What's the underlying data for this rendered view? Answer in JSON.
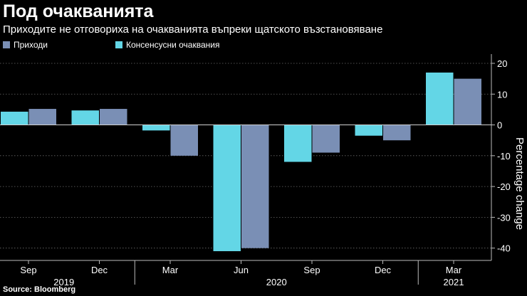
{
  "header": {
    "title": "Под очакванията",
    "subtitle": "Приходите не отговориха на очакванията въпреки щатското възстановяване"
  },
  "legend": {
    "items": [
      {
        "label": "Приходи",
        "color": "#7a8fb5"
      },
      {
        "label": "Консенсусни очаквания",
        "color": "#63d6e6"
      }
    ]
  },
  "footer": {
    "source": "Source:  Bloomberg"
  },
  "chart_data": {
    "type": "bar",
    "categories": [
      "Sep",
      "Dec",
      "Mar",
      "Jun",
      "Sep",
      "Dec",
      "Mar"
    ],
    "year_labels": [
      {
        "label": "2019",
        "span": [
          0,
          1
        ]
      },
      {
        "label": "2020",
        "span": [
          2,
          5
        ]
      },
      {
        "label": "2021",
        "span": [
          6,
          6
        ]
      }
    ],
    "series": [
      {
        "name": "Консенсусни очаквания",
        "color": "#63d6e6",
        "values": [
          4.3,
          4.7,
          -1.8,
          -41.0,
          -12.0,
          -3.5,
          17.0
        ]
      },
      {
        "name": "Приходи",
        "color": "#7a8fb5",
        "values": [
          5.2,
          5.2,
          -10.0,
          -40.0,
          -9.0,
          -5.0,
          15.0
        ]
      }
    ],
    "ylabel": "Percentage change",
    "ylim": [
      -44,
      23
    ],
    "yticks": [
      20,
      10,
      0,
      -10,
      -20,
      -30,
      -40
    ],
    "grid": true,
    "legend_position": "top-left"
  }
}
